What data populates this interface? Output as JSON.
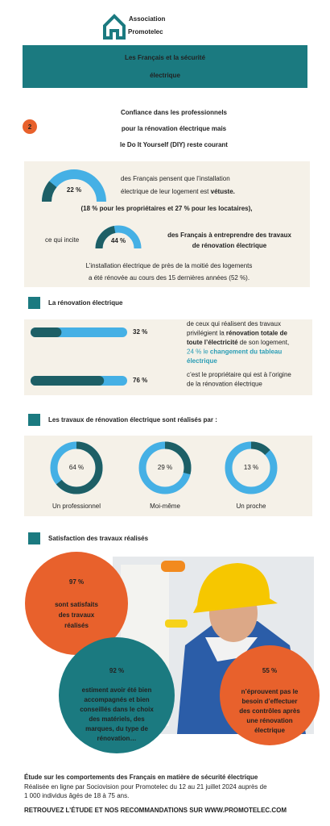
{
  "header": {
    "association": "Association",
    "brand": "Promotelec",
    "title": [
      "Les Français et la sécurité",
      "électrique"
    ]
  },
  "section": {
    "number": "2",
    "title": [
      "Confiance dans les professionnels",
      "pour la rénovation électrique mais",
      "le Do It Yourself (DIY) reste courant"
    ]
  },
  "confidence": {
    "stat1": {
      "value": 22,
      "label": "22 %",
      "lines": [
        [
          {
            "text": "des Français pensent que l’installation"
          }
        ],
        [
          {
            "text": "électrique de leur logement est "
          },
          {
            "text": "vétuste.",
            "style": "bold"
          }
        ]
      ]
    },
    "detail": "(18 % pour les propriétaires et 27 % pour les locataires),",
    "lead": "ce qui incite",
    "stat2": {
      "value": 44,
      "label": "44 %",
      "lines": [
        [
          {
            "text": "des Français à entreprendre des travaux",
            "style": "bold"
          }
        ],
        [
          {
            "text": "de rénovation électrique",
            "style": "bold"
          }
        ]
      ]
    },
    "note": [
      "L’installation électrique de près de la moitié des logements",
      "a été rénovée au cours des 15 dernières années (52 %)."
    ]
  },
  "renovation": {
    "heading": "La rénovation électrique",
    "items": [
      {
        "value": 32,
        "label": "32 %",
        "lines": [
          [
            {
              "text": "de ceux qui réalisent des travaux"
            }
          ],
          [
            {
              "text": "privilégient la "
            },
            {
              "text": "rénovation totale de",
              "style": "bold"
            }
          ],
          [
            {
              "text": "toute l’électricité",
              "style": "bold"
            },
            {
              "text": " de son logement,"
            }
          ],
          [
            {
              "text": "24 % le ",
              "style": "accent"
            },
            {
              "text": "changement du tableau",
              "style": "accent-bold"
            }
          ],
          [
            {
              "text": "électrique",
              "style": "accent-bold"
            }
          ]
        ]
      },
      {
        "value": 76,
        "label": "76 %",
        "lines": [
          [
            {
              "text": "c’est le propriétaire qui est à l’origine"
            }
          ],
          [
            {
              "text": "de la rénovation électrique"
            }
          ]
        ]
      }
    ]
  },
  "works": {
    "heading": "Les travaux de rénovation électrique sont réalisés par :",
    "items": [
      {
        "value": 64,
        "label": "64 %",
        "name": "Un professionnel"
      },
      {
        "value": 29,
        "label": "29 %",
        "name": "Moi-même"
      },
      {
        "value": 13,
        "label": "13 %",
        "name": "Un proche"
      }
    ]
  },
  "satisfaction": {
    "heading": "Satisfaction des travaux réalisés",
    "items": [
      {
        "value": 97,
        "label": "97 %",
        "lines": [
          "sont satisfaits",
          "des travaux",
          "réalisés"
        ]
      },
      {
        "value": 92,
        "label": "92 %",
        "lines": [
          "estiment avoir été bien",
          "accompagnés et bien",
          "conseillés dans le choix",
          "des matériels, des",
          "marques, du type de",
          "rénovation…"
        ]
      },
      {
        "value": 55,
        "label": "55 %",
        "lines": [
          "n’éprouvent pas le",
          "besoin d’effectuer",
          "des contrôles après",
          "une rénovation",
          "électrique"
        ]
      }
    ]
  },
  "footer": {
    "study": "Étude sur les comportements des Français en matière de sécurité électrique",
    "method": [
      "Réalisée en ligne par Sociovision pour Promotelec du 12 au 21 juillet 2024 auprès de",
      "1 000 individus âgés de 18 à 75 ans."
    ],
    "cta": "RETROUVEZ L’ÉTUDE ET NOS RECOMMANDATIONS SUR WWW.PROMOTELEC.COM"
  }
}
